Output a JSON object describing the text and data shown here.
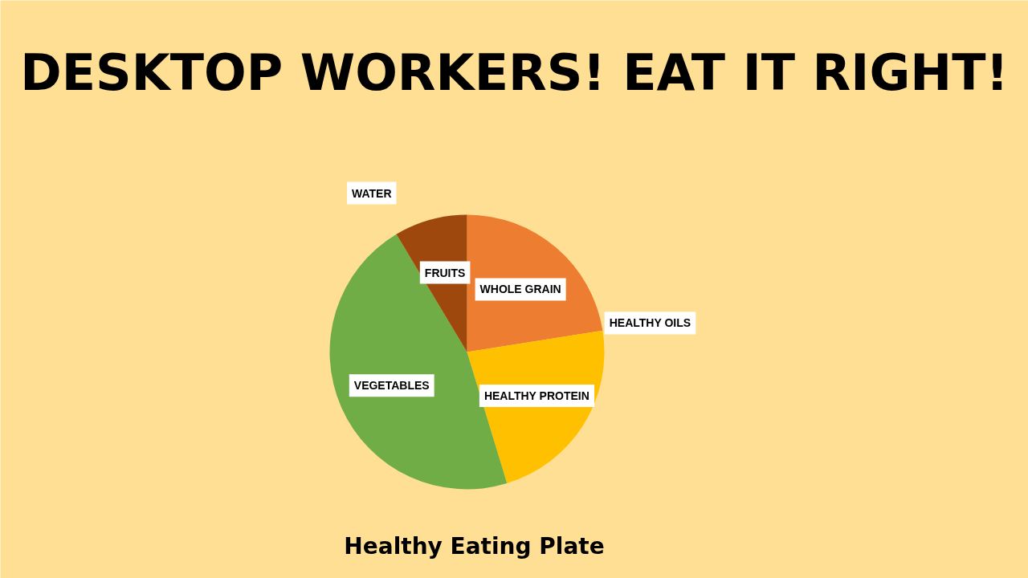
{
  "chart_data": {
    "type": "pie",
    "title": "DESKTOP WORKERS! EAT IT RIGHT!",
    "annotations": [
      "Healthy Eating Plate"
    ],
    "categories": [
      "WHOLE GRAIN",
      "HEALTHY OILS",
      "HEALTHY PROTEIN",
      "VEGETABLES",
      "WATER",
      "FRUITS"
    ],
    "values": [
      22.5,
      0,
      22.8,
      46.1,
      0,
      8.6
    ],
    "colors": [
      "#ed7d31",
      "#a5a5a5",
      "#ffc000",
      "#70ad47",
      "#5b9bd5",
      "#9e480e"
    ]
  }
}
